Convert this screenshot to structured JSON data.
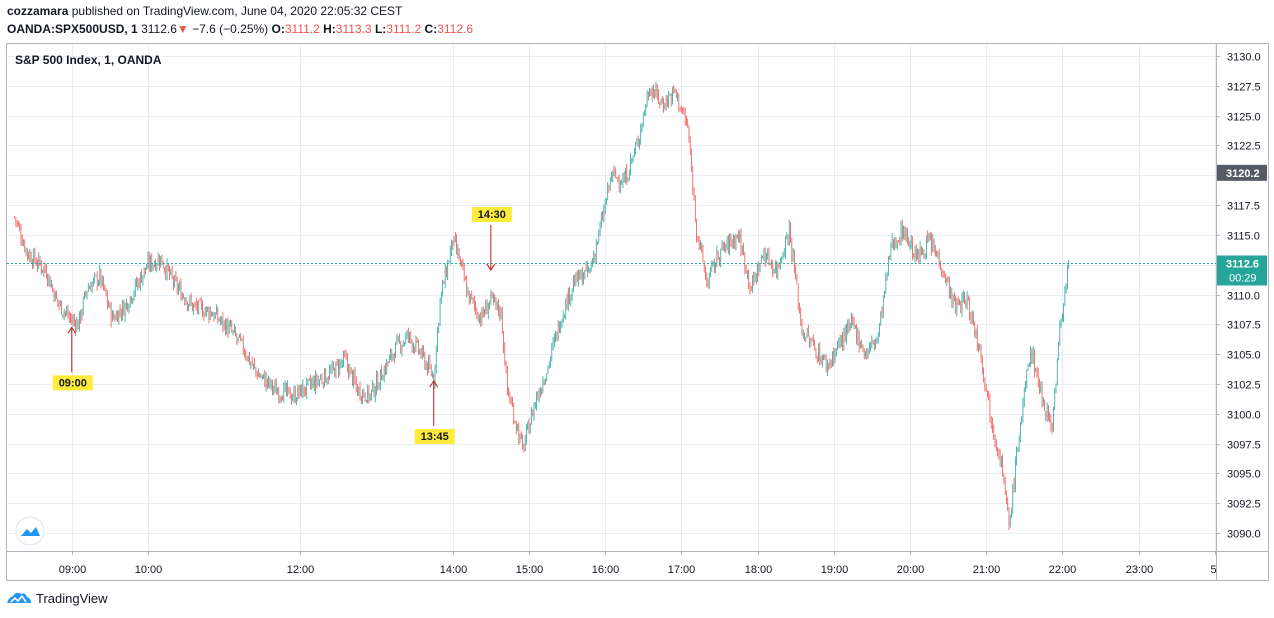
{
  "header": {
    "publisher": "cozzamara",
    "published_text": "published on TradingView.com, June 04, 2020 22:05:32 CEST",
    "symbol": "OANDA:SPX500USD, 1",
    "last": "3112.6",
    "change_arrow": "▼",
    "change": "−7.6 (−0.25%)",
    "o_label": "O:",
    "o_value": "3111.2",
    "h_label": "H:",
    "h_value": "3113.3",
    "l_label": "L:",
    "l_value": "3111.2",
    "c_label": "C:",
    "c_value": "3112.6"
  },
  "footer": {
    "brand": "TradingView",
    "logo_icon": "tradingview-logo-icon"
  },
  "chart_data": {
    "type": "candlestick",
    "title": "S&P 500 Index, 1, OANDA",
    "x_ticks": [
      "09:00",
      "10:00",
      "12:00",
      "14:00",
      "15:00",
      "16:00",
      "17:00",
      "18:00",
      "19:00",
      "20:00",
      "21:00",
      "22:00",
      "23:00",
      "5"
    ],
    "y_ticks": [
      "3130.0",
      "3127.5",
      "3125.0",
      "3122.5",
      "3120.0",
      "3117.5",
      "3115.0",
      "3112.5",
      "3110.0",
      "3107.5",
      "3105.0",
      "3102.5",
      "3100.0",
      "3097.5",
      "3095.0",
      "3092.5",
      "3090.0"
    ],
    "y_range": [
      3088.5,
      3131
    ],
    "price_line": 3112.6,
    "labels": {
      "price_line": "3112.6",
      "prev_close": "3120.2",
      "countdown": "00:29"
    },
    "colors": {
      "up": "#26a69a",
      "down": "#ef5350",
      "grid": "#e9ecf1",
      "annotation": "#b71c1c",
      "marker_bg": "#ffeb3b",
      "price_line": "#26a69a"
    },
    "price_path": [
      [
        "08:15",
        3116.5
      ],
      [
        "08:25",
        3113.5
      ],
      [
        "08:40",
        3112.0
      ],
      [
        "08:48",
        3109.5
      ],
      [
        "09:00",
        3107.8
      ],
      [
        "09:05",
        3107.5
      ],
      [
        "09:12",
        3110.5
      ],
      [
        "09:22",
        3111.5
      ],
      [
        "09:32",
        3108.0
      ],
      [
        "09:42",
        3109.0
      ],
      [
        "09:52",
        3111.0
      ],
      [
        "10:00",
        3112.5
      ],
      [
        "10:10",
        3113.0
      ],
      [
        "10:20",
        3111.0
      ],
      [
        "10:35",
        3109.0
      ],
      [
        "10:50",
        3108.5
      ],
      [
        "11:05",
        3107.0
      ],
      [
        "11:15",
        3105.5
      ],
      [
        "11:25",
        3103.5
      ],
      [
        "11:40",
        3102.0
      ],
      [
        "11:55",
        3101.5
      ],
      [
        "12:10",
        3102.5
      ],
      [
        "12:25",
        3103.5
      ],
      [
        "12:35",
        3104.5
      ],
      [
        "12:45",
        3102.0
      ],
      [
        "12:55",
        3101.5
      ],
      [
        "13:05",
        3103.5
      ],
      [
        "13:15",
        3105.5
      ],
      [
        "13:25",
        3106.5
      ],
      [
        "13:35",
        3105.0
      ],
      [
        "13:45",
        3103.0
      ],
      [
        "13:50",
        3109.5
      ],
      [
        "13:55",
        3112.0
      ],
      [
        "14:00",
        3114.5
      ],
      [
        "14:05",
        3113.0
      ],
      [
        "14:12",
        3110.0
      ],
      [
        "14:22",
        3108.0
      ],
      [
        "14:30",
        3109.5
      ],
      [
        "14:38",
        3108.5
      ],
      [
        "14:43",
        3102.0
      ],
      [
        "14:48",
        3100.0
      ],
      [
        "14:55",
        3097.0
      ],
      [
        "15:05",
        3101.0
      ],
      [
        "15:15",
        3104.0
      ],
      [
        "15:25",
        3108.0
      ],
      [
        "15:35",
        3111.0
      ],
      [
        "15:48",
        3112.0
      ],
      [
        "15:55",
        3115.0
      ],
      [
        "16:05",
        3120.0
      ],
      [
        "16:15",
        3119.5
      ],
      [
        "16:25",
        3122.5
      ],
      [
        "16:35",
        3127.5
      ],
      [
        "16:45",
        3126.0
      ],
      [
        "16:55",
        3127.0
      ],
      [
        "17:05",
        3124.0
      ],
      [
        "17:12",
        3115.5
      ],
      [
        "17:20",
        3111.0
      ],
      [
        "17:30",
        3113.5
      ],
      [
        "17:45",
        3115.0
      ],
      [
        "17:55",
        3110.5
      ],
      [
        "18:05",
        3113.5
      ],
      [
        "18:15",
        3112.0
      ],
      [
        "18:25",
        3115.5
      ],
      [
        "18:35",
        3107.0
      ],
      [
        "18:45",
        3105.5
      ],
      [
        "18:55",
        3104.0
      ],
      [
        "19:05",
        3106.0
      ],
      [
        "19:15",
        3107.5
      ],
      [
        "19:25",
        3105.0
      ],
      [
        "19:35",
        3106.5
      ],
      [
        "19:45",
        3114.0
      ],
      [
        "19:55",
        3115.5
      ],
      [
        "20:05",
        3113.0
      ],
      [
        "20:15",
        3114.5
      ],
      [
        "20:25",
        3112.5
      ],
      [
        "20:35",
        3109.0
      ],
      [
        "20:45",
        3109.5
      ],
      [
        "20:55",
        3105.5
      ],
      [
        "21:05",
        3099.0
      ],
      [
        "21:12",
        3096.0
      ],
      [
        "21:18",
        3090.5
      ],
      [
        "21:25",
        3097.5
      ],
      [
        "21:35",
        3105.5
      ],
      [
        "21:45",
        3101.0
      ],
      [
        "21:52",
        3099.0
      ],
      [
        "21:58",
        3107.0
      ],
      [
        "22:05",
        3112.6
      ]
    ]
  },
  "markers": [
    {
      "label": "09:00",
      "arrow": "up",
      "time": "09:00",
      "price": 3107.5
    },
    {
      "label": "13:45",
      "arrow": "up",
      "time": "13:45",
      "price": 3103.0
    },
    {
      "label": "14:30",
      "arrow": "down",
      "time": "14:30",
      "price": 3111.8
    }
  ]
}
